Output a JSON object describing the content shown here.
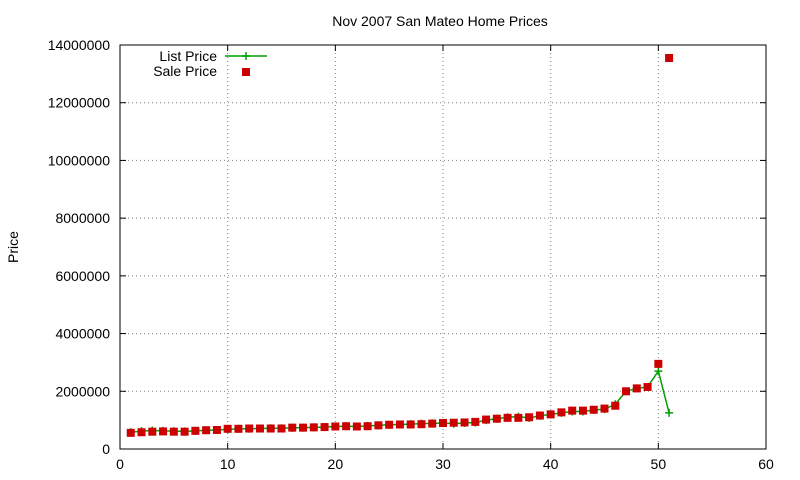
{
  "chart_data": {
    "type": "line",
    "title": "Nov 2007 San Mateo Home Prices",
    "xlabel": "",
    "ylabel": "Price",
    "xlim": [
      0,
      60
    ],
    "ylim": [
      0,
      14000000
    ],
    "xticks": [
      0,
      10,
      20,
      30,
      40,
      50,
      60
    ],
    "yticks": [
      0,
      2000000,
      4000000,
      6000000,
      8000000,
      10000000,
      12000000,
      14000000
    ],
    "grid": true,
    "legend_position": "top-left",
    "series": [
      {
        "name": "List Price",
        "style": "line-with-plus-markers",
        "color": "#00a000",
        "x": [
          1,
          2,
          3,
          4,
          5,
          6,
          7,
          8,
          9,
          10,
          11,
          12,
          13,
          14,
          15,
          16,
          17,
          18,
          19,
          20,
          21,
          22,
          23,
          24,
          25,
          26,
          27,
          28,
          29,
          30,
          31,
          32,
          33,
          34,
          35,
          36,
          37,
          38,
          39,
          40,
          41,
          42,
          43,
          44,
          45,
          46,
          47,
          48,
          49,
          50,
          51
        ],
        "y": [
          580000,
          620000,
          640000,
          630000,
          620000,
          610000,
          630000,
          650000,
          660000,
          680000,
          700000,
          700000,
          710000,
          720000,
          720000,
          730000,
          740000,
          750000,
          760000,
          780000,
          790000,
          780000,
          800000,
          820000,
          840000,
          850000,
          860000,
          880000,
          890000,
          900000,
          880000,
          900000,
          920000,
          1000000,
          1050000,
          1100000,
          1120000,
          1080000,
          1150000,
          1200000,
          1250000,
          1300000,
          1300000,
          1350000,
          1380000,
          1550000,
          2000000,
          2100000,
          2150000,
          2700000,
          1250000
        ]
      },
      {
        "name": "Sale Price",
        "style": "square-markers",
        "color": "#cc0000",
        "x": [
          1,
          2,
          3,
          4,
          5,
          6,
          7,
          8,
          9,
          10,
          11,
          12,
          13,
          14,
          15,
          16,
          17,
          18,
          19,
          20,
          21,
          22,
          23,
          24,
          25,
          26,
          27,
          28,
          29,
          30,
          31,
          32,
          33,
          34,
          35,
          36,
          37,
          38,
          39,
          40,
          41,
          42,
          43,
          44,
          45,
          46,
          47,
          48,
          49,
          50,
          51
        ],
        "y": [
          560000,
          580000,
          600000,
          610000,
          600000,
          600000,
          630000,
          650000,
          660000,
          700000,
          700000,
          710000,
          710000,
          710000,
          710000,
          740000,
          740000,
          750000,
          760000,
          780000,
          790000,
          780000,
          790000,
          820000,
          840000,
          850000,
          850000,
          860000,
          880000,
          900000,
          910000,
          920000,
          940000,
          1020000,
          1050000,
          1080000,
          1080000,
          1100000,
          1160000,
          1200000,
          1270000,
          1330000,
          1330000,
          1360000,
          1400000,
          1500000,
          2000000,
          2100000,
          2150000,
          2950000,
          13550000
        ]
      }
    ]
  }
}
